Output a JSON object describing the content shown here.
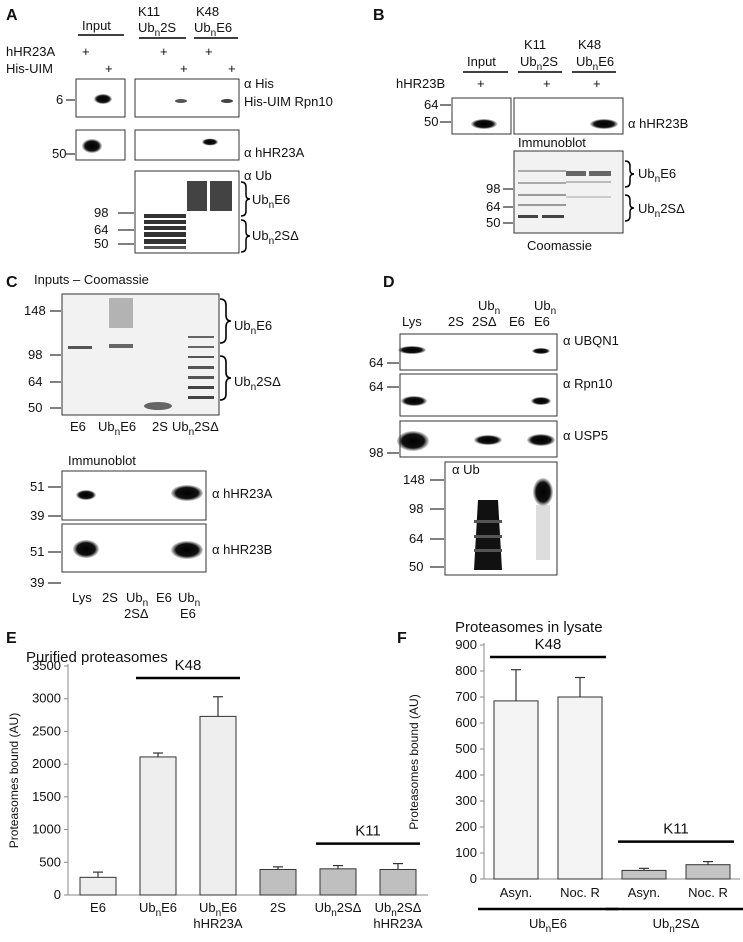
{
  "panel_letters": {
    "A": "A",
    "B": "B",
    "C": "C",
    "D": "D",
    "E": "E",
    "F": "F"
  },
  "panelA": {
    "lane_headers": {
      "input": "Input",
      "k11": "K11",
      "ub2s": "Ub",
      "ub2s_sub": "n",
      "ub2s_tail": "2S",
      "k48": "K48",
      "ube6": "Ub",
      "ube6_sub": "n",
      "ube6_tail": "E6"
    },
    "row_labels": [
      "hHR23A",
      "His-UIM"
    ],
    "plus": "+",
    "mw": {
      "six": "6",
      "fifty": "50",
      "ninetyeight": "98",
      "sixtyfour": "64",
      "fifty2": "50"
    },
    "antibodies": {
      "his": "α His",
      "his_uim": "His-UIM Rpn10",
      "hhr23a": "α hHR23A",
      "ub": "α Ub"
    },
    "brackets": {
      "top_main": "Ub",
      "top_sub": "n",
      "top_tail": "E6",
      "bottom_main": "Ub",
      "bottom_sub": "n",
      "bottom_tail": "2SΔ"
    }
  },
  "panelB": {
    "lane_headers": {
      "input": "Input",
      "k11": "K11",
      "ub2s": "Ub",
      "ub2s_sub": "n",
      "ub2s_tail": "2S",
      "k48": "K48",
      "ube6": "Ub",
      "ube6_sub": "n",
      "ube6_tail": "E6"
    },
    "row_label": "hHR23B",
    "plus": "+",
    "mw": {
      "sixtyfour": "64",
      "fifty": "50",
      "ninetyeight": "98",
      "sixtyfour2": "64",
      "fifty2": "50"
    },
    "antibody": "α hHR23B",
    "immunoblot": "Immunoblot",
    "coomassie": "Coomassie",
    "brackets": {
      "top_main": "Ub",
      "top_sub": "n",
      "top_tail": "E6",
      "bottom_main": "Ub",
      "bottom_sub": "n",
      "bottom_tail": "2SΔ"
    }
  },
  "panelC": {
    "title": "Inputs – Coomassie",
    "mw_top": [
      "148",
      "98",
      "64",
      "50"
    ],
    "gel_lanes": {
      "e6": "E6",
      "ube6": "Ub",
      "ube6_sub": "n",
      "ube6_tail": "E6",
      "s2": "2S",
      "ub2s": "Ub",
      "ub2s_sub": "n",
      "ub2s_tail": "2SΔ"
    },
    "brackets": {
      "top_main": "Ub",
      "top_sub": "n",
      "top_tail": "E6",
      "bottom_main": "Ub",
      "bottom_sub": "n",
      "bottom_tail": "2SΔ"
    },
    "immunoblot": "Immunoblot",
    "mw_blot": [
      "51",
      "39",
      "51",
      "39"
    ],
    "antibodies": {
      "a": "α hHR23A",
      "b": "α hHR23B"
    },
    "bottom_lanes": {
      "lys": "Lys",
      "s2": "2S",
      "ub2s": "Ub",
      "ub2s_sub": "n",
      "ub2s_tail": "2SΔ",
      "e6": "E6",
      "ube6": "Ub",
      "ube6_sub": "n",
      "ube6_tail": "E6"
    }
  },
  "panelD": {
    "lanes": {
      "lys": "Lys",
      "s2": "2S",
      "ub2s": "Ub",
      "ub2s_sub": "n",
      "ub2s_tail": "2SΔ",
      "e6": "E6",
      "ube6": "Ub",
      "ube6_sub": "n",
      "ube6_tail": "E6"
    },
    "mw": {
      "a": "64",
      "b": "64",
      "c": "98",
      "d": "148",
      "e": "98",
      "f": "64",
      "g": "50"
    },
    "antibodies": {
      "ubqn1": "α UBQN1",
      "rpn10": "α Rpn10",
      "usp5": "α USP5",
      "ub": "α Ub"
    }
  },
  "chart_data": [
    {
      "type": "bar",
      "title": "Purified proteasomes",
      "ylabel": "Proteasomes bound (AU)",
      "ylim": [
        0,
        3500
      ],
      "yticks": [
        0,
        500,
        1000,
        1500,
        2000,
        2500,
        3000,
        3500
      ],
      "categories": [
        "E6",
        "UbnE6",
        "UbnE6 hHR23A",
        "2S",
        "Ub2SΔ",
        "Ub2SΔ hHR23A"
      ],
      "category_labels": [
        {
          "main": "E6",
          "sub": "",
          "tail": "",
          "line2": ""
        },
        {
          "main": "Ub",
          "sub": "n",
          "tail": "E6",
          "line2": ""
        },
        {
          "main": "Ub",
          "sub": "n",
          "tail": "E6",
          "line2": "hHR23A"
        },
        {
          "main": "2S",
          "sub": "",
          "tail": "",
          "line2": ""
        },
        {
          "main": "Ub",
          "sub": "n",
          "tail": "2SΔ",
          "line2": ""
        },
        {
          "main": "Ub",
          "sub": "n",
          "tail": "2SΔ",
          "line2": "hHR23A"
        }
      ],
      "values": [
        270,
        2110,
        2730,
        390,
        400,
        390
      ],
      "errors": [
        80,
        60,
        300,
        40,
        50,
        90
      ],
      "colors": [
        "#eeeeee",
        "#eeeeee",
        "#eeeeee",
        "#bfbfbf",
        "#bfbfbf",
        "#bfbfbf"
      ],
      "annotations": [
        {
          "text": "K48",
          "from": 1,
          "to": 2
        },
        {
          "text": "K11",
          "from": 4,
          "to": 5
        }
      ]
    },
    {
      "type": "bar",
      "title": "Proteasomes in lysate",
      "ylabel": "Proteasomes bound (AU)",
      "ylim": [
        0,
        900
      ],
      "yticks": [
        0,
        100,
        200,
        300,
        400,
        500,
        600,
        700,
        800,
        900
      ],
      "categories": [
        "Asyn.",
        "Noc. R",
        "Asyn.",
        "Noc. R"
      ],
      "values": [
        685,
        700,
        33,
        55
      ],
      "errors": [
        120,
        75,
        8,
        12
      ],
      "colors": [
        "#f4f4f4",
        "#f4f4f4",
        "#c4c4c4",
        "#c4c4c4"
      ],
      "annotations": [
        {
          "text": "K48",
          "from": 0,
          "to": 1
        },
        {
          "text": "K11",
          "from": 2,
          "to": 3
        }
      ],
      "groups": [
        {
          "main": "Ub",
          "sub": "n",
          "tail": "E6"
        },
        {
          "main": "Ub",
          "sub": "n",
          "tail": "2SΔ"
        }
      ]
    }
  ]
}
